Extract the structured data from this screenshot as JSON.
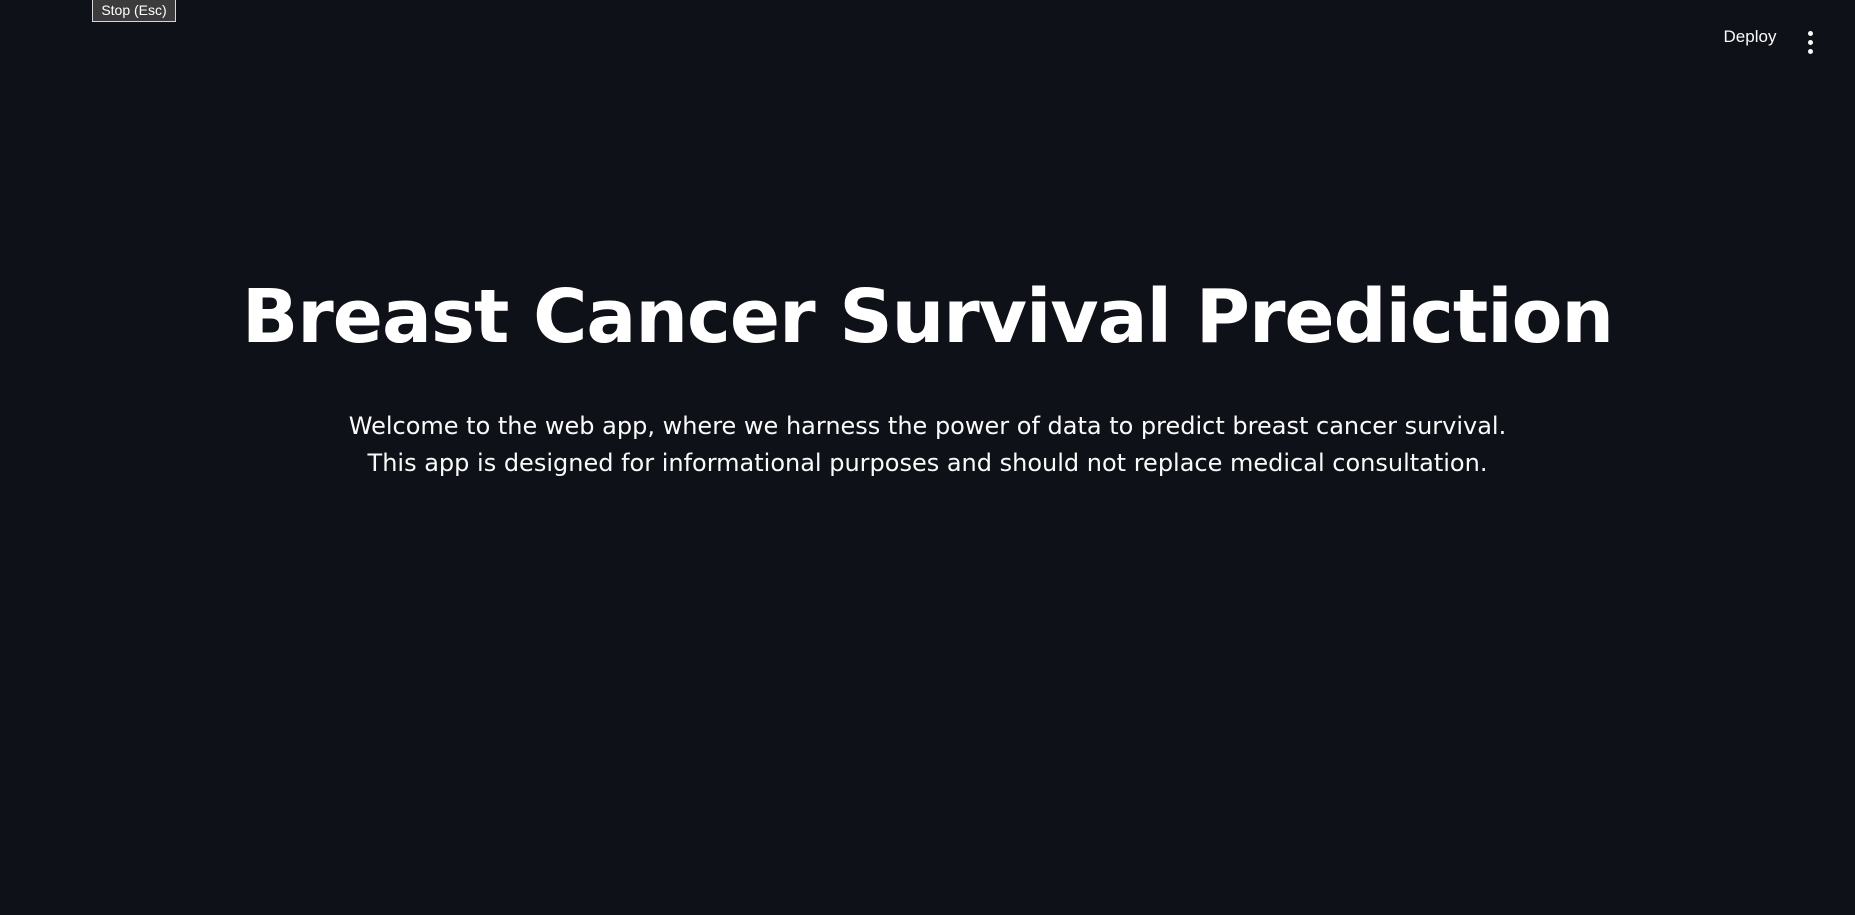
{
  "tooltip": {
    "stop_label": "Stop (Esc)"
  },
  "header": {
    "deploy_label": "Deploy",
    "menu_icon": "vertical-ellipsis-icon"
  },
  "main": {
    "title": "Breast Cancer Survival Prediction",
    "subtitle_lines": [
      "Welcome to the web app, where we harness the power of data to predict breast cancer survival.",
      "This app is designed for informational purposes and should not replace medical consultation."
    ]
  },
  "colors": {
    "background": "#0e1117",
    "text": "#fafafa"
  }
}
